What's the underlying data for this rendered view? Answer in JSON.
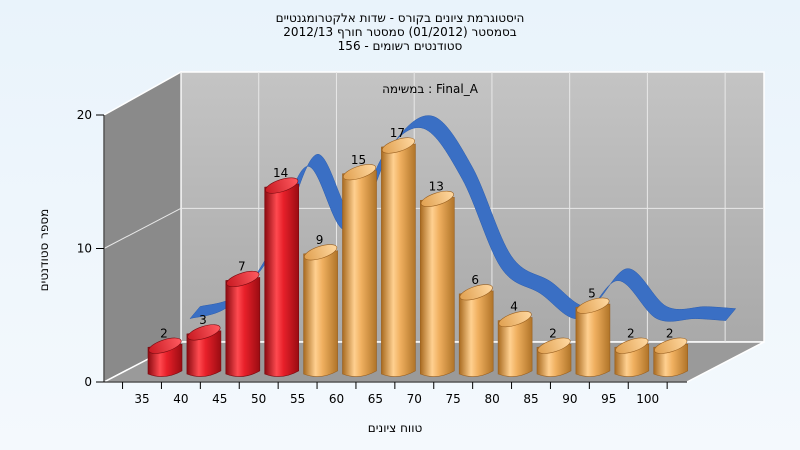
{
  "chart_data": {
    "type": "bar",
    "title": [
      "היסטוגרמת ציונים בקורס - שדות אלקטרומגנטיים",
      "בסמסטר  (01/2012)  סמסטר חורף 2012/13",
      "156 - סטודנטים רשומים"
    ],
    "inner_label": "במשימה : Final_A",
    "xlabel": "טווח ציונים",
    "ylabel": "מספר סטודנטים",
    "categories": [
      "35",
      "40",
      "45",
      "50",
      "55",
      "60",
      "65",
      "70",
      "75",
      "80",
      "85",
      "90",
      "95",
      "100"
    ],
    "values": [
      2,
      3,
      7,
      14,
      9,
      15,
      17,
      13,
      6,
      4,
      2,
      5,
      2,
      2
    ],
    "bar_colors": [
      "#e8202a",
      "#e8202a",
      "#e8202a",
      "#e8202a",
      "#f0b060",
      "#f0b060",
      "#f0b060",
      "#f0b060",
      "#f0b060",
      "#f0b060",
      "#f0b060",
      "#f0b060",
      "#f0b060",
      "#f0b060"
    ],
    "yticks": [
      "0",
      "10",
      "20"
    ],
    "ylim": [
      0,
      20
    ],
    "ribbon_color": "#3a6fc4",
    "grid": true
  }
}
